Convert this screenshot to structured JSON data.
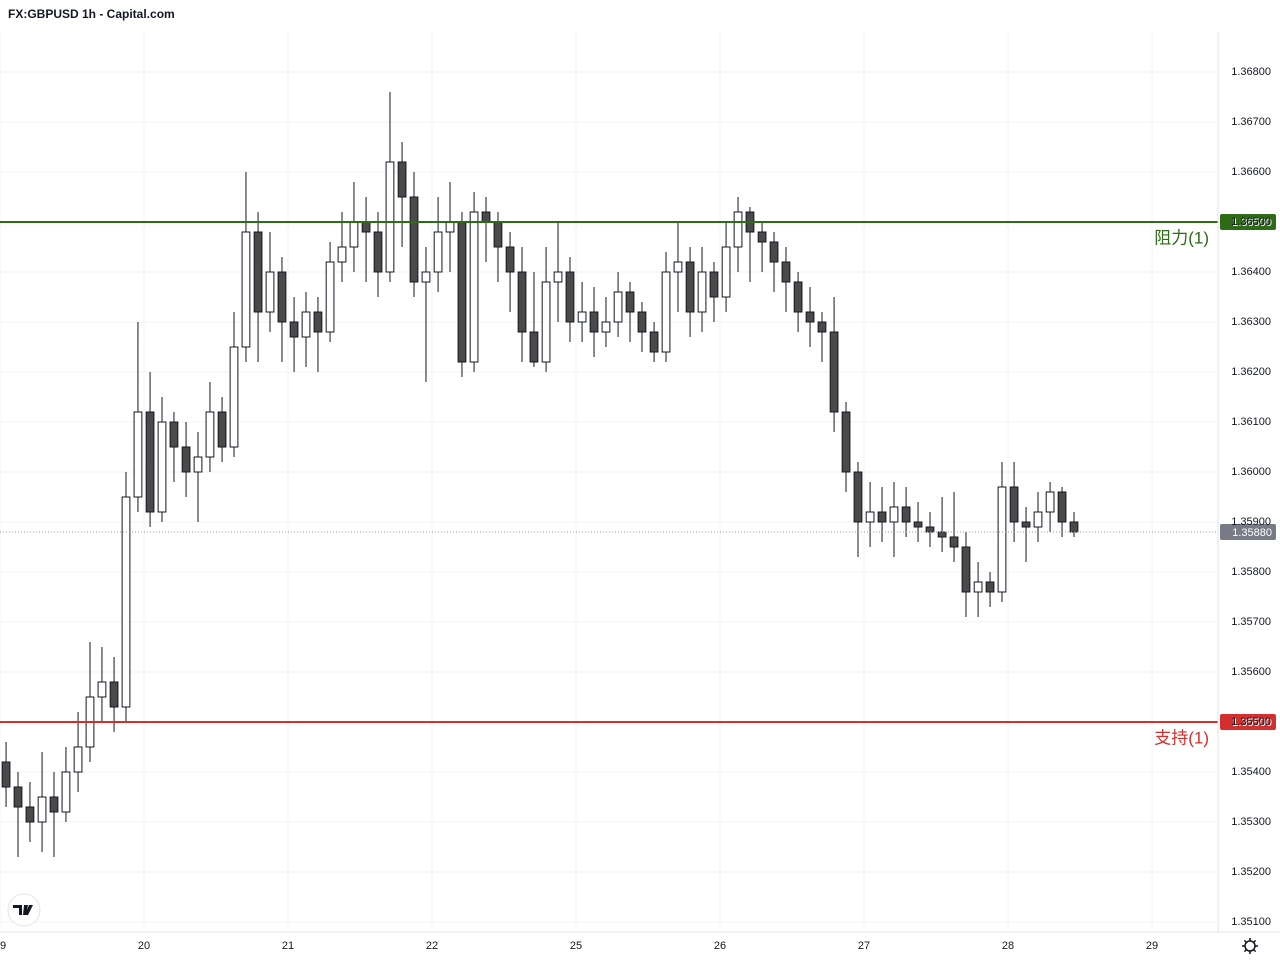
{
  "chart_data": {
    "type": "candlestick",
    "title": "FX:GBPUSD 1h - Capital.com",
    "x": [
      0.042,
      0.125,
      0.208,
      0.292,
      0.375,
      0.458,
      0.542,
      0.625,
      0.708,
      0.792,
      0.875,
      0.958,
      1.042,
      1.125,
      1.208,
      1.292,
      1.375,
      1.458,
      1.542,
      1.625,
      1.708,
      1.792,
      1.875,
      1.958,
      2.042,
      2.125,
      2.208,
      2.292,
      2.375,
      2.458,
      2.542,
      2.625,
      2.708,
      2.792,
      2.875,
      2.958,
      3.042,
      3.125,
      3.208,
      3.292,
      3.375,
      3.458,
      3.542,
      3.625,
      3.708,
      3.792,
      3.875,
      3.958,
      4.042,
      4.125,
      4.208,
      4.292,
      4.375,
      4.458,
      4.542,
      4.625,
      4.708,
      4.792,
      4.875,
      4.958,
      5.042,
      5.125,
      5.208,
      5.292,
      5.375,
      5.458,
      5.542,
      5.625,
      5.708,
      5.792,
      5.875,
      5.958,
      6.042,
      6.125,
      6.208,
      6.292,
      6.375,
      6.458,
      6.542,
      6.625,
      6.708,
      6.792,
      6.875,
      6.958,
      7.042,
      7.125,
      7.208,
      7.292,
      7.375,
      7.458
    ],
    "open": [
      1.3542,
      1.3537,
      1.3533,
      1.353,
      1.3535,
      1.3532,
      1.354,
      1.3545,
      1.3555,
      1.3558,
      1.3553,
      1.3595,
      1.3612,
      1.3592,
      1.361,
      1.3605,
      1.36,
      1.3603,
      1.3612,
      1.3605,
      1.3625,
      1.3648,
      1.3632,
      1.364,
      1.363,
      1.3627,
      1.3632,
      1.3628,
      1.3642,
      1.3645,
      1.365,
      1.3648,
      1.364,
      1.3662,
      1.3655,
      1.3638,
      1.364,
      1.3648,
      1.365,
      1.3622,
      1.3652,
      1.365,
      1.3645,
      1.364,
      1.3628,
      1.3622,
      1.3638,
      1.364,
      1.363,
      1.3632,
      1.3628,
      1.363,
      1.3636,
      1.3632,
      1.3628,
      1.3624,
      1.364,
      1.3642,
      1.3632,
      1.364,
      1.3635,
      1.3645,
      1.3652,
      1.3648,
      1.3646,
      1.3642,
      1.3638,
      1.3632,
      1.363,
      1.3628,
      1.3612,
      1.36,
      1.359,
      1.3592,
      1.359,
      1.3593,
      1.359,
      1.3589,
      1.3588,
      1.3587,
      1.3585,
      1.3576,
      1.3578,
      1.3576,
      1.3597,
      1.359,
      1.3589,
      1.3592,
      1.3596,
      1.359
    ],
    "high": [
      1.3546,
      1.354,
      1.3538,
      1.3544,
      1.354,
      1.3545,
      1.3552,
      1.3566,
      1.3565,
      1.3563,
      1.36,
      1.363,
      1.362,
      1.3615,
      1.3612,
      1.361,
      1.3608,
      1.3618,
      1.3615,
      1.3632,
      1.366,
      1.3652,
      1.3648,
      1.3643,
      1.3635,
      1.3636,
      1.3635,
      1.3646,
      1.3652,
      1.3658,
      1.3655,
      1.3652,
      1.3676,
      1.3666,
      1.366,
      1.3645,
      1.3655,
      1.3658,
      1.3652,
      1.3656,
      1.3655,
      1.3652,
      1.3648,
      1.3645,
      1.364,
      1.3645,
      1.365,
      1.3643,
      1.3638,
      1.3637,
      1.3635,
      1.364,
      1.3638,
      1.3634,
      1.363,
      1.3644,
      1.365,
      1.3645,
      1.3645,
      1.3642,
      1.365,
      1.3655,
      1.3653,
      1.365,
      1.3648,
      1.3645,
      1.364,
      1.3637,
      1.3632,
      1.3635,
      1.3614,
      1.3602,
      1.3598,
      1.3597,
      1.3598,
      1.3597,
      1.3594,
      1.3592,
      1.3595,
      1.3596,
      1.3588,
      1.3582,
      1.358,
      1.3602,
      1.3602,
      1.3593,
      1.3596,
      1.3598,
      1.3597,
      1.3592
    ],
    "low": [
      1.3533,
      1.3523,
      1.3526,
      1.3524,
      1.3523,
      1.353,
      1.3536,
      1.3542,
      1.355,
      1.3548,
      1.355,
      1.3592,
      1.3589,
      1.359,
      1.3598,
      1.3595,
      1.359,
      1.36,
      1.3602,
      1.3603,
      1.3622,
      1.3622,
      1.3628,
      1.3622,
      1.362,
      1.3621,
      1.362,
      1.3626,
      1.3638,
      1.364,
      1.3638,
      1.3635,
      1.3638,
      1.3645,
      1.3635,
      1.3618,
      1.3636,
      1.364,
      1.3619,
      1.362,
      1.3642,
      1.3638,
      1.3632,
      1.3622,
      1.3621,
      1.362,
      1.363,
      1.3626,
      1.3626,
      1.3623,
      1.3625,
      1.3627,
      1.3626,
      1.3624,
      1.3622,
      1.3622,
      1.3632,
      1.3627,
      1.3628,
      1.363,
      1.3632,
      1.364,
      1.3638,
      1.364,
      1.3636,
      1.3632,
      1.3628,
      1.3625,
      1.3622,
      1.3608,
      1.3596,
      1.3583,
      1.3585,
      1.3586,
      1.3583,
      1.3587,
      1.3586,
      1.3585,
      1.3584,
      1.3582,
      1.3571,
      1.3571,
      1.3573,
      1.3574,
      1.3586,
      1.3582,
      1.3586,
      1.3588,
      1.3587,
      1.3587
    ],
    "close": [
      1.3537,
      1.3533,
      1.353,
      1.3535,
      1.3532,
      1.354,
      1.3545,
      1.3555,
      1.3558,
      1.3553,
      1.3595,
      1.3612,
      1.3592,
      1.361,
      1.3605,
      1.36,
      1.3603,
      1.3612,
      1.3605,
      1.3625,
      1.3648,
      1.3632,
      1.364,
      1.363,
      1.3627,
      1.3632,
      1.3628,
      1.3642,
      1.3645,
      1.365,
      1.3648,
      1.364,
      1.3662,
      1.3655,
      1.3638,
      1.364,
      1.3648,
      1.365,
      1.3622,
      1.3652,
      1.365,
      1.3645,
      1.364,
      1.3628,
      1.3622,
      1.3638,
      1.364,
      1.363,
      1.3632,
      1.3628,
      1.363,
      1.3636,
      1.3632,
      1.3628,
      1.3624,
      1.364,
      1.3642,
      1.3632,
      1.364,
      1.3635,
      1.3645,
      1.3652,
      1.3648,
      1.3646,
      1.3642,
      1.3638,
      1.3632,
      1.363,
      1.3628,
      1.3612,
      1.36,
      1.359,
      1.3592,
      1.359,
      1.3593,
      1.359,
      1.3589,
      1.3588,
      1.3587,
      1.3585,
      1.3576,
      1.3578,
      1.3576,
      1.3597,
      1.359,
      1.3589,
      1.3592,
      1.3596,
      1.359,
      1.3588
    ],
    "up_color": "#ffffff",
    "down_color": "#4a4a4a",
    "xlim": [
      0,
      8.458
    ],
    "xticks": [
      {
        "value": 0,
        "label": "9"
      },
      {
        "value": 1,
        "label": "20"
      },
      {
        "value": 2,
        "label": "21"
      },
      {
        "value": 3,
        "label": "22"
      },
      {
        "value": 4,
        "label": "25"
      },
      {
        "value": 5,
        "label": "26"
      },
      {
        "value": 6,
        "label": "27"
      },
      {
        "value": 7,
        "label": "28"
      },
      {
        "value": 8,
        "label": "29"
      }
    ],
    "ylim": [
      1.3508,
      1.3688
    ],
    "yticks": [
      {
        "value": 1.351,
        "label": "1.35100"
      },
      {
        "value": 1.352,
        "label": "1.35200"
      },
      {
        "value": 1.353,
        "label": "1.35300"
      },
      {
        "value": 1.354,
        "label": "1.35400"
      },
      {
        "value": 1.355,
        "label": "1.35500"
      },
      {
        "value": 1.356,
        "label": "1.35600"
      },
      {
        "value": 1.357,
        "label": "1.35700"
      },
      {
        "value": 1.358,
        "label": "1.35800"
      },
      {
        "value": 1.359,
        "label": "1.35900"
      },
      {
        "value": 1.36,
        "label": "1.36000"
      },
      {
        "value": 1.361,
        "label": "1.36100"
      },
      {
        "value": 1.362,
        "label": "1.36200"
      },
      {
        "value": 1.363,
        "label": "1.36300"
      },
      {
        "value": 1.364,
        "label": "1.36400"
      },
      {
        "value": 1.365,
        "label": "1.36500"
      },
      {
        "value": 1.366,
        "label": "1.36600"
      },
      {
        "value": 1.367,
        "label": "1.36700"
      },
      {
        "value": 1.368,
        "label": "1.36800"
      }
    ],
    "grid": true,
    "levels": [
      {
        "name": "阻力(1)",
        "value": 1.365,
        "value_label": "1.36500",
        "color": "#2e6b17"
      },
      {
        "name": "支持(1)",
        "value": 1.355,
        "value_label": "1.35500",
        "color": "#d32f2f"
      }
    ],
    "current_price": {
      "value": 1.3588,
      "value_label": "1.35880",
      "color": "#787b86"
    }
  }
}
